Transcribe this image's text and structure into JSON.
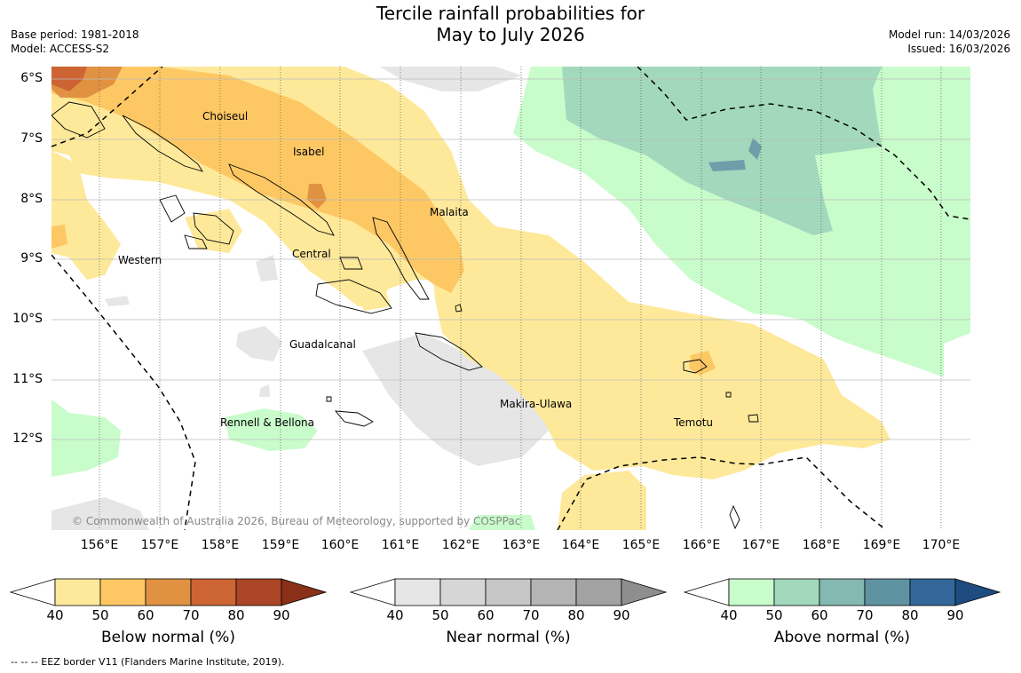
{
  "title": {
    "line1": "Tercile rainfall probabilities for",
    "line2": "May to July 2026"
  },
  "meta_left": {
    "base_period": "Base period: 1981-2018",
    "model": "Model: ACCESS-S2"
  },
  "meta_right": {
    "model_run": "Model run: 14/03/2026",
    "issued": "Issued: 16/03/2026"
  },
  "map": {
    "lat_labels": [
      "6°S",
      "7°S",
      "8°S",
      "9°S",
      "10°S",
      "11°S",
      "12°S"
    ],
    "lon_labels": [
      "156°E",
      "157°E",
      "158°E",
      "159°E",
      "160°E",
      "161°E",
      "162°E",
      "163°E",
      "164°E",
      "165°E",
      "166°E",
      "167°E",
      "168°E",
      "169°E",
      "170°E"
    ],
    "places": [
      "Choiseul",
      "Isabel",
      "Malaita",
      "Western",
      "Central",
      "Guadalcanal",
      "Makira-Ulawa",
      "Rennell & Bellona",
      "Temotu"
    ],
    "copyright": "© Commonwealth of Australia 2026, Bureau of Meteorology, supported by COSPPac",
    "ocean_color": "#ffffff"
  },
  "colorbars": [
    {
      "title": "Below normal (%)",
      "ticks": [
        "40",
        "50",
        "60",
        "70",
        "80",
        "90"
      ],
      "colors": [
        "#fee99a",
        "#fdc864",
        "#e09242",
        "#cc6433",
        "#aa4626",
        "#8a3018"
      ]
    },
    {
      "title": "Near normal (%)",
      "ticks": [
        "40",
        "50",
        "60",
        "70",
        "80",
        "90"
      ],
      "colors": [
        "#e6e6e6",
        "#d6d6d6",
        "#c6c6c6",
        "#b4b4b4",
        "#a2a2a2",
        "#8e8e8e"
      ]
    },
    {
      "title": "Above normal (%)",
      "ticks": [
        "40",
        "50",
        "60",
        "70",
        "80",
        "90"
      ],
      "colors": [
        "#c9fccb",
        "#a2d9bd",
        "#84b9b2",
        "#5f93a2",
        "#33679a",
        "#1e4c80"
      ]
    }
  ],
  "footer": "--  --  -- EEZ border V11 (Flanders Marine Institute, 2019)."
}
